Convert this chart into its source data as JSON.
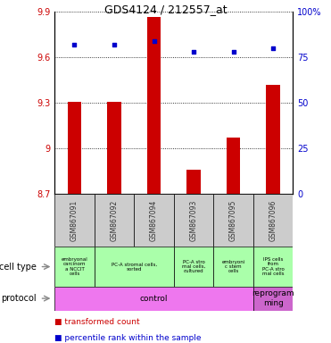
{
  "title": "GDS4124 / 212557_at",
  "samples": [
    "GSM867091",
    "GSM867092",
    "GSM867094",
    "GSM867093",
    "GSM867095",
    "GSM867096"
  ],
  "bar_values": [
    9.31,
    9.31,
    9.87,
    8.86,
    9.07,
    9.42
  ],
  "bar_bottom": 8.7,
  "percentile_values": [
    0.82,
    0.82,
    0.84,
    0.78,
    0.78,
    0.8
  ],
  "ylim_left": [
    8.7,
    9.9
  ],
  "ylim_right": [
    0,
    1.0
  ],
  "yticks_left": [
    8.7,
    9.0,
    9.3,
    9.6,
    9.9
  ],
  "ytick_labels_left": [
    "8.7",
    "9",
    "9.3",
    "9.6",
    "9.9"
  ],
  "yticks_right": [
    0,
    0.25,
    0.5,
    0.75,
    1.0
  ],
  "ytick_labels_right": [
    "0",
    "25",
    "50",
    "75",
    "100%"
  ],
  "bar_color": "#cc0000",
  "dot_color": "#0000cc",
  "sample_label_color": "#333333",
  "axis_label_color_left": "#cc0000",
  "axis_label_color_right": "#0000cc",
  "sample_header_bg": "#cccccc",
  "cell_groups": [
    {
      "start": 0,
      "end": 1,
      "label": "embryonal\ncarcinom\na NCCIT\ncells"
    },
    {
      "start": 1,
      "end": 3,
      "label": "PC-A stromal cells,\nsorted"
    },
    {
      "start": 3,
      "end": 4,
      "label": "PC-A stro\nmal cells,\ncultured"
    },
    {
      "start": 4,
      "end": 5,
      "label": "embryoni\nc stem\ncells"
    },
    {
      "start": 5,
      "end": 6,
      "label": "IPS cells\nfrom\nPC-A stro\nmal cells"
    }
  ],
  "cell_group_color": "#aaffaa",
  "prot_groups": [
    {
      "start": 0,
      "end": 5,
      "label": "control",
      "color": "#ee77ee"
    },
    {
      "start": 5,
      "end": 6,
      "label": "reprogram\nming",
      "color": "#cc66cc"
    }
  ],
  "legend_items": [
    {
      "color": "#cc0000",
      "label": "transformed count"
    },
    {
      "color": "#0000cc",
      "label": "percentile rank within the sample"
    }
  ]
}
